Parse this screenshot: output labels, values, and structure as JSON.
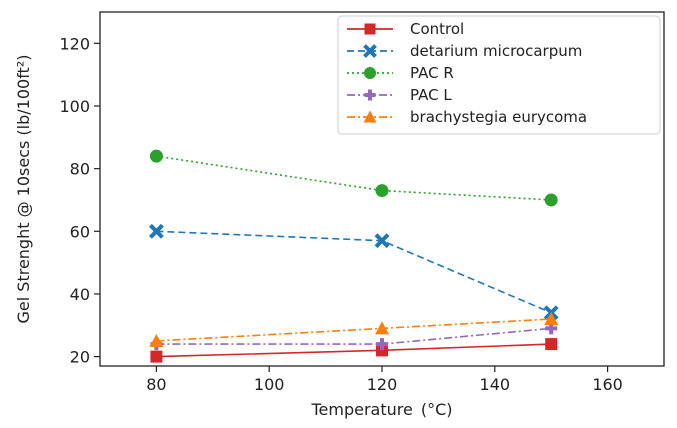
{
  "chart_data": {
    "type": "line",
    "xlabel": "Temperature",
    "xlabel_unit": "(°C)",
    "ylabel": "Gel Strenght @ 10secs (lb/100ft²)",
    "xlim": [
      70,
      170
    ],
    "ylim": [
      17,
      130
    ],
    "xticks": [
      80,
      100,
      120,
      140,
      160
    ],
    "yticks": [
      20,
      40,
      60,
      80,
      100,
      120
    ],
    "legend_position": "top-right",
    "series": [
      {
        "name": "Control",
        "x": [
          80,
          120,
          150
        ],
        "values": [
          20,
          22,
          24
        ],
        "color": "#d62728",
        "linestyle": "solid",
        "marker": "square"
      },
      {
        "name": "detarium microcarpum",
        "x": [
          80,
          120,
          150
        ],
        "values": [
          60,
          57,
          34
        ],
        "color": "#1f77b4",
        "linestyle": "dashed",
        "marker": "x"
      },
      {
        "name": "PAC R",
        "x": [
          80,
          120,
          150
        ],
        "values": [
          84,
          73,
          70
        ],
        "color": "#2ca02c",
        "linestyle": "dotted",
        "marker": "circle"
      },
      {
        "name": "PAC L",
        "x": [
          80,
          120,
          150
        ],
        "values": [
          24,
          24,
          29
        ],
        "color": "#9467bd",
        "linestyle": "dashdot",
        "marker": "plus"
      },
      {
        "name": "brachystegia eurycoma",
        "x": [
          80,
          120,
          150
        ],
        "values": [
          25,
          29,
          32
        ],
        "color": "#ff7f0e",
        "linestyle": "dashdot",
        "marker": "triangle"
      }
    ]
  }
}
